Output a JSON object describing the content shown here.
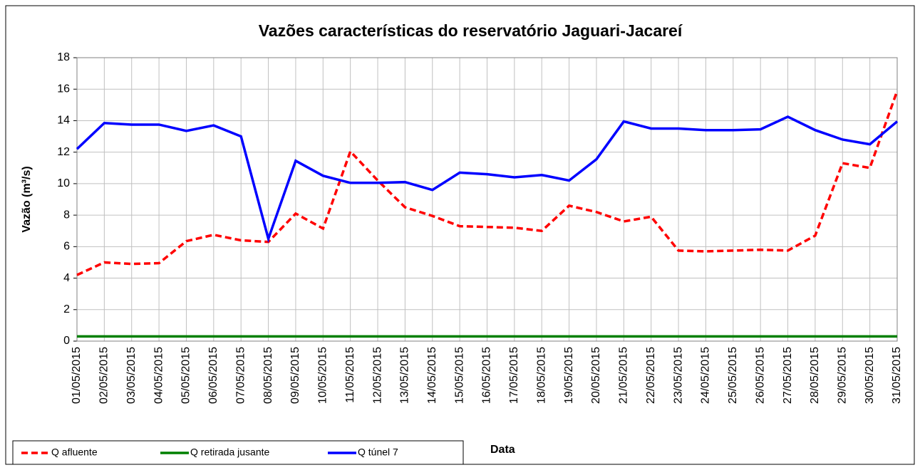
{
  "chart_data": {
    "type": "line",
    "title": "Vazões características do reservatório Jaguari-Jacareí",
    "x_label": "Data",
    "y_label": "Vazão (m³/s)",
    "categories": [
      "01/05/2015",
      "02/05/2015",
      "03/05/2015",
      "04/05/2015",
      "05/05/2015",
      "06/05/2015",
      "07/05/2015",
      "08/05/2015",
      "09/05/2015",
      "10/05/2015",
      "11/05/2015",
      "12/05/2015",
      "13/05/2015",
      "14/05/2015",
      "15/05/2015",
      "16/05/2015",
      "17/05/2015",
      "18/05/2015",
      "19/05/2015",
      "20/05/2015",
      "21/05/2015",
      "22/05/2015",
      "23/05/2015",
      "24/05/2015",
      "25/05/2015",
      "26/05/2015",
      "27/05/2015",
      "28/05/2015",
      "29/05/2015",
      "30/05/2015",
      "31/05/2015"
    ],
    "series": [
      {
        "name": "Q afluente",
        "color": "#ff0000",
        "dash": true,
        "values": [
          4.2,
          5.0,
          4.9,
          4.95,
          6.35,
          6.75,
          6.4,
          6.3,
          8.1,
          7.15,
          12.05,
          10.2,
          8.5,
          7.95,
          7.3,
          7.25,
          7.2,
          7.0,
          8.6,
          8.2,
          7.6,
          7.9,
          5.75,
          5.7,
          5.75,
          5.8,
          5.75,
          6.7,
          11.3,
          11.0,
          15.9
        ]
      },
      {
        "name": "Q retirada jusante",
        "color": "#008000",
        "dash": false,
        "values": [
          0.3,
          0.3,
          0.3,
          0.3,
          0.3,
          0.3,
          0.3,
          0.3,
          0.3,
          0.3,
          0.3,
          0.3,
          0.3,
          0.3,
          0.3,
          0.3,
          0.3,
          0.3,
          0.3,
          0.3,
          0.3,
          0.3,
          0.3,
          0.3,
          0.3,
          0.3,
          0.3,
          0.3,
          0.3,
          0.3,
          0.3
        ]
      },
      {
        "name": "Q túnel 7",
        "color": "#0000ff",
        "dash": false,
        "values": [
          12.2,
          13.85,
          13.75,
          13.75,
          13.35,
          13.7,
          13.0,
          6.5,
          11.45,
          10.5,
          10.05,
          10.05,
          10.1,
          9.6,
          10.7,
          10.6,
          10.4,
          10.55,
          10.2,
          11.55,
          13.95,
          13.5,
          13.5,
          13.4,
          13.4,
          13.45,
          14.25,
          13.4,
          12.8,
          12.5,
          13.95
        ]
      }
    ],
    "ylim": [
      0,
      18
    ],
    "yticks": [
      0,
      2,
      4,
      6,
      8,
      10,
      12,
      14,
      16,
      18
    ],
    "grid": true
  }
}
